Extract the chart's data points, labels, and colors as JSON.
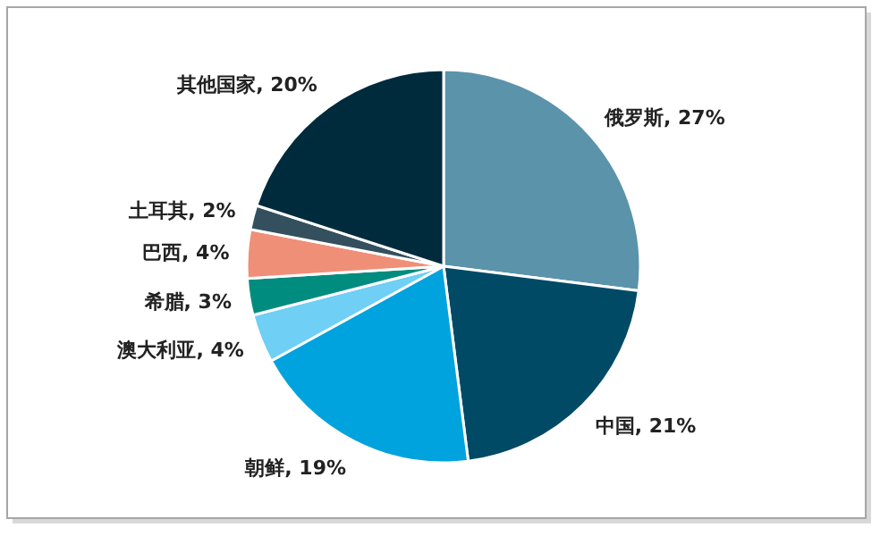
{
  "chart_data": {
    "type": "pie",
    "categories": [
      "俄罗斯",
      "中国",
      "朝鲜",
      "澳大利亚",
      "希腊",
      "巴西",
      "土耳其",
      "其他国家"
    ],
    "values": [
      27,
      21,
      19,
      4,
      3,
      4,
      2,
      20
    ],
    "value_labels": [
      "27%",
      "21%",
      "19%",
      "4%",
      "3%",
      "4%",
      "2%",
      "20%"
    ],
    "colors": [
      "#5b93ab",
      "#004a66",
      "#00a3de",
      "#6fcff4",
      "#008c7e",
      "#f08f78",
      "#34505f",
      "#002b3d"
    ]
  }
}
